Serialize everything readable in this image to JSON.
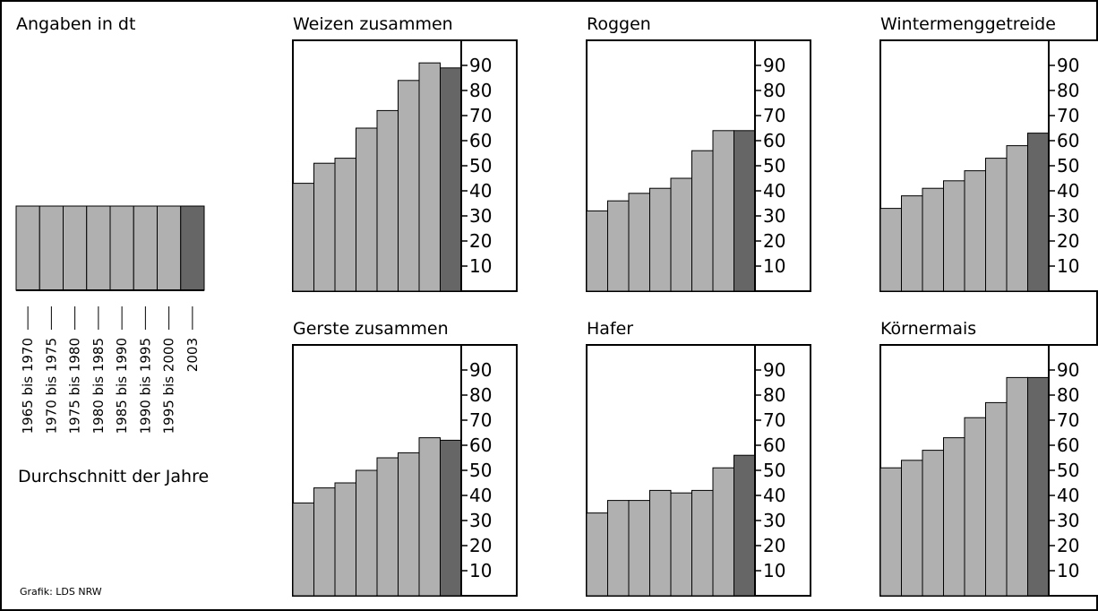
{
  "header": {
    "unit_label": "Angaben in dt"
  },
  "legend": {
    "periods": [
      "1965 bis 1970",
      "1970 bis 1975",
      "1975 bis 1980",
      "1980 bis 1985",
      "1985 bis 1990",
      "1990 bis 1995",
      "1995 bis 2000",
      "2003"
    ],
    "caption": "Durchschnitt der Jahre",
    "bar_color": "#b0b0b0",
    "highlight_color": "#666666"
  },
  "credit": "Grafik: LDS NRW",
  "chart_data": [
    {
      "type": "bar",
      "title": "Weizen zusammen",
      "categories": [
        "1965 bis 1970",
        "1970 bis 1975",
        "1975 bis 1980",
        "1980 bis 1985",
        "1985 bis 1990",
        "1990 bis 1995",
        "1995 bis 2000",
        "2003"
      ],
      "values": [
        43,
        51,
        53,
        65,
        72,
        84,
        91,
        89
      ],
      "ylim": [
        0,
        100
      ],
      "yticks": [
        10,
        20,
        30,
        40,
        50,
        60,
        70,
        80,
        90
      ]
    },
    {
      "type": "bar",
      "title": "Roggen",
      "categories": [
        "1965 bis 1970",
        "1970 bis 1975",
        "1975 bis 1980",
        "1980 bis 1985",
        "1985 bis 1990",
        "1990 bis 1995",
        "1995 bis 2000",
        "2003"
      ],
      "values": [
        32,
        36,
        39,
        41,
        45,
        56,
        64,
        64
      ],
      "ylim": [
        0,
        100
      ],
      "yticks": [
        10,
        20,
        30,
        40,
        50,
        60,
        70,
        80,
        90
      ]
    },
    {
      "type": "bar",
      "title": "Wintermenggetreide",
      "categories": [
        "1965 bis 1970",
        "1970 bis 1975",
        "1975 bis 1980",
        "1980 bis 1985",
        "1985 bis 1990",
        "1990 bis 1995",
        "1995 bis 2000",
        "2003"
      ],
      "values": [
        33,
        38,
        41,
        44,
        48,
        53,
        58,
        63
      ],
      "ylim": [
        0,
        100
      ],
      "yticks": [
        10,
        20,
        30,
        40,
        50,
        60,
        70,
        80,
        90
      ]
    },
    {
      "type": "bar",
      "title": "Gerste zusammen",
      "categories": [
        "1965 bis 1970",
        "1970 bis 1975",
        "1975 bis 1980",
        "1980 bis 1985",
        "1985 bis 1990",
        "1990 bis 1995",
        "1995 bis 2000",
        "2003"
      ],
      "values": [
        37,
        43,
        45,
        50,
        55,
        57,
        63,
        62
      ],
      "ylim": [
        0,
        100
      ],
      "yticks": [
        10,
        20,
        30,
        40,
        50,
        60,
        70,
        80,
        90
      ]
    },
    {
      "type": "bar",
      "title": "Hafer",
      "categories": [
        "1965 bis 1970",
        "1970 bis 1975",
        "1975 bis 1980",
        "1980 bis 1985",
        "1985 bis 1990",
        "1990 bis 1995",
        "1995 bis 2000",
        "2003"
      ],
      "values": [
        33,
        38,
        38,
        42,
        41,
        42,
        51,
        56
      ],
      "ylim": [
        0,
        100
      ],
      "yticks": [
        10,
        20,
        30,
        40,
        50,
        60,
        70,
        80,
        90
      ]
    },
    {
      "type": "bar",
      "title": "Körnermais",
      "categories": [
        "1965 bis 1970",
        "1970 bis 1975",
        "1975 bis 1980",
        "1980 bis 1985",
        "1985 bis 1990",
        "1990 bis 1995",
        "1995 bis 2000",
        "2003"
      ],
      "values": [
        51,
        54,
        58,
        63,
        71,
        77,
        87,
        87
      ],
      "ylim": [
        0,
        100
      ],
      "yticks": [
        10,
        20,
        30,
        40,
        50,
        60,
        70,
        80,
        90
      ]
    }
  ]
}
